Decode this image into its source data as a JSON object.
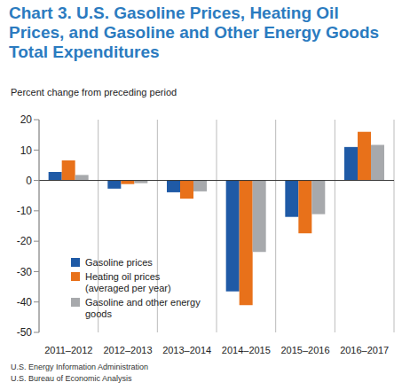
{
  "chart_data": {
    "type": "bar",
    "title": "Chart 3. U.S. Gasoline Prices, Heating Oil Prices, and Gasoline and Other Energy Goods Total Expenditures",
    "y_label": "Percent change from preceding period",
    "categories": [
      "2011–2012",
      "2012–2013",
      "2013–2014",
      "2014–2015",
      "2015–2016",
      "2016–2017"
    ],
    "series": [
      {
        "name": "Gasoline prices",
        "color": "#1f5aa6",
        "values": [
          2.8,
          -2.7,
          -3.9,
          -36.5,
          -12,
          11
        ]
      },
      {
        "name": "Heating oil prices (averaged per year)",
        "color": "#e8711a",
        "values": [
          6.6,
          -1.2,
          -6,
          -41,
          -17.4,
          16
        ]
      },
      {
        "name": "Gasoline and other energy goods",
        "color": "#a7a9ac",
        "values": [
          1.8,
          -0.9,
          -3.6,
          -23.5,
          -11.1,
          11.7
        ]
      }
    ],
    "ylim": [
      -50,
      20
    ],
    "yticks": [
      -50,
      -40,
      -30,
      -20,
      -10,
      0,
      10,
      20
    ],
    "legend": "lower left",
    "annotations": [
      "U.S. Energy Information Administration",
      "U.S. Bureau of Economic Analysis"
    ]
  }
}
